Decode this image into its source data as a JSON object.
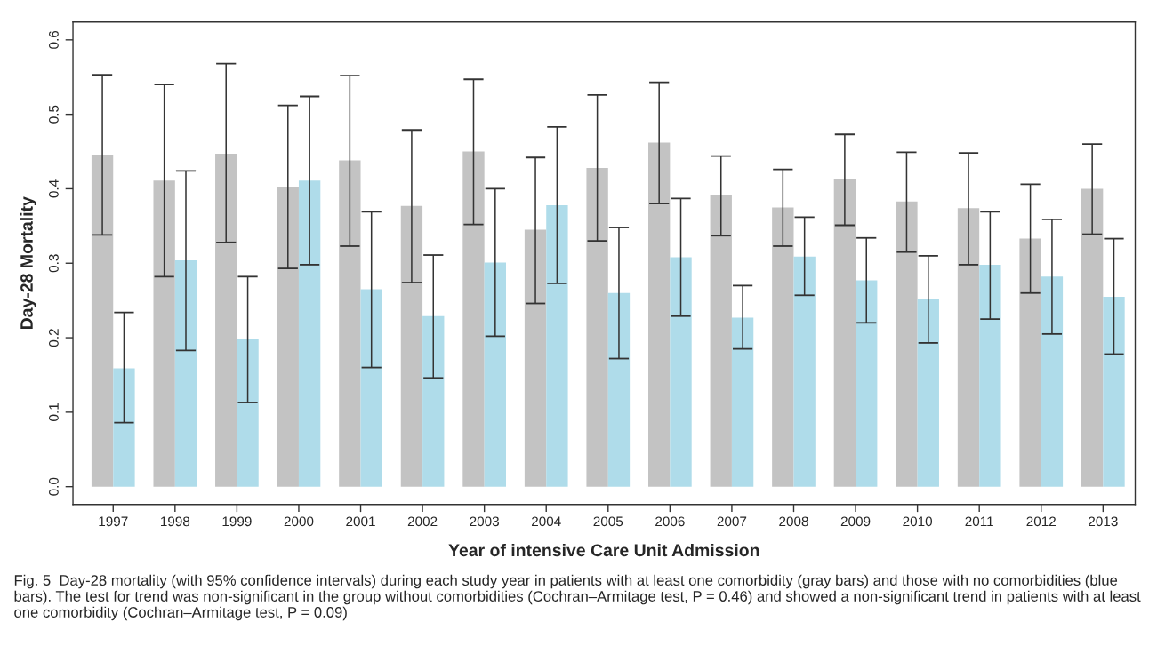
{
  "chart_data": {
    "type": "bar",
    "xlabel": "Year of intensive Care Unit Admission",
    "ylabel": "Day-28 Mortality",
    "categories": [
      "1997",
      "1998",
      "1999",
      "2000",
      "2001",
      "2002",
      "2003",
      "2004",
      "2005",
      "2006",
      "2007",
      "2008",
      "2009",
      "2010",
      "2011",
      "2012",
      "2013"
    ],
    "series": [
      {
        "color": "#c3c3c3",
        "values": [
          0.446,
          0.411,
          0.447,
          0.402,
          0.438,
          0.377,
          0.45,
          0.345,
          0.428,
          0.462,
          0.392,
          0.375,
          0.413,
          0.383,
          0.374,
          0.333,
          0.4
        ],
        "errors": [
          [
            0.338,
            0.553
          ],
          [
            0.282,
            0.54
          ],
          [
            0.328,
            0.568
          ],
          [
            0.293,
            0.512
          ],
          [
            0.323,
            0.552
          ],
          [
            0.274,
            0.479
          ],
          [
            0.352,
            0.547
          ],
          [
            0.246,
            0.442
          ],
          [
            0.33,
            0.526
          ],
          [
            0.38,
            0.543
          ],
          [
            0.337,
            0.444
          ],
          [
            0.323,
            0.426
          ],
          [
            0.351,
            0.473
          ],
          [
            0.315,
            0.449
          ],
          [
            0.298,
            0.448
          ],
          [
            0.26,
            0.406
          ],
          [
            0.339,
            0.46
          ]
        ]
      },
      {
        "color": "#afdcea",
        "values": [
          0.159,
          0.304,
          0.198,
          0.411,
          0.265,
          0.229,
          0.301,
          0.378,
          0.26,
          0.308,
          0.227,
          0.309,
          0.277,
          0.252,
          0.298,
          0.282,
          0.255
        ],
        "errors": [
          [
            0.086,
            0.234
          ],
          [
            0.183,
            0.424
          ],
          [
            0.113,
            0.282
          ],
          [
            0.298,
            0.524
          ],
          [
            0.16,
            0.369
          ],
          [
            0.146,
            0.311
          ],
          [
            0.202,
            0.4
          ],
          [
            0.273,
            0.483
          ],
          [
            0.172,
            0.348
          ],
          [
            0.229,
            0.387
          ],
          [
            0.185,
            0.27
          ],
          [
            0.257,
            0.362
          ],
          [
            0.22,
            0.334
          ],
          [
            0.193,
            0.31
          ],
          [
            0.225,
            0.369
          ],
          [
            0.205,
            0.359
          ],
          [
            0.178,
            0.333
          ]
        ]
      }
    ],
    "ylim": [
      -0.024,
      0.624
    ],
    "yticks": [
      {
        "value": 0,
        "label": "0.0"
      },
      0.1,
      0.2,
      0.3,
      0.4,
      0.5,
      0.6
    ],
    "grid": false,
    "legend": false,
    "annotations": [
      "Fig. 5  Day-28 mortality (with 95% confidence intervals) during each study year in patients with at least one comorbidity (gray bars) and those with no comorbidities (blue bars). The test for trend was non-significant in the group without comorbidities (Cochran–Armitage test, P = 0.46) and showed a non-significant trend in patients with at least one comorbidity (Cochran–Armitage test, P = 0.09)"
    ]
  }
}
